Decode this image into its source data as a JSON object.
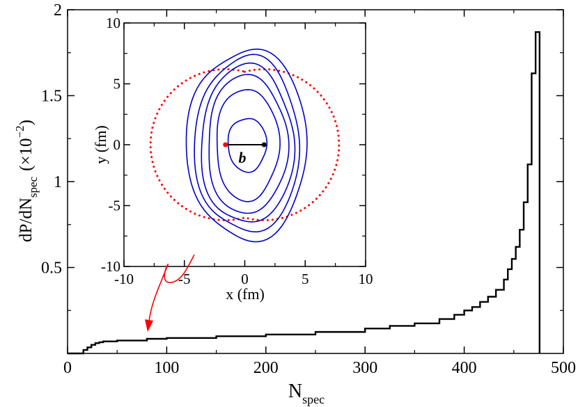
{
  "chart_data": [
    {
      "type": "line",
      "title": "",
      "xlabel_main": "N",
      "xlabel_sub": "spec",
      "ylabel_main": "dP/dN",
      "ylabel_sub": "spec",
      "ylabel_factor": "(×10",
      "ylabel_exp": "−2",
      "ylabel_close": ")",
      "xlim": [
        0,
        500
      ],
      "ylim": [
        0,
        2
      ],
      "x_ticks": [
        0,
        100,
        200,
        300,
        400,
        500
      ],
      "x_tick_labels": [
        "0",
        "100",
        "200",
        "300",
        "400",
        "500"
      ],
      "y_ticks": [
        0.5,
        1,
        1.5,
        2
      ],
      "y_tick_labels": [
        "0.5",
        "1",
        "1.5",
        "2"
      ],
      "series": [
        {
          "name": "histogram",
          "style": "step",
          "color": "#000000",
          "x": [
            0,
            16,
            20,
            24,
            28,
            32,
            36,
            50,
            80,
            100,
            150,
            200,
            250,
            300,
            325,
            350,
            375,
            390,
            400,
            408,
            416,
            424,
            432,
            440,
            444,
            448,
            452,
            456,
            460,
            464,
            468,
            472,
            476
          ],
          "values": [
            0,
            0.02,
            0.035,
            0.05,
            0.06,
            0.065,
            0.07,
            0.075,
            0.085,
            0.09,
            0.1,
            0.11,
            0.125,
            0.145,
            0.16,
            0.175,
            0.2,
            0.225,
            0.25,
            0.27,
            0.3,
            0.33,
            0.37,
            0.43,
            0.49,
            0.55,
            0.62,
            0.72,
            0.88,
            1.1,
            1.63,
            1.87,
            0
          ]
        }
      ]
    },
    {
      "type": "line",
      "title": "",
      "xlabel": "x (fm)",
      "ylabel": "y (fm)",
      "xlim": [
        -10,
        10
      ],
      "ylim": [
        -10,
        10
      ],
      "x_ticks": [
        -10,
        -5,
        0,
        5,
        10
      ],
      "x_tick_labels": [
        "-10",
        "-5",
        "0",
        "5",
        "10"
      ],
      "y_ticks": [
        -10,
        -5,
        0,
        5,
        10
      ],
      "y_tick_labels": [
        "-10",
        "-5",
        "0",
        "5",
        "10"
      ],
      "annotation": "b",
      "impact_parameter": {
        "x_start": -1.6,
        "x_end": 1.6,
        "y": 0
      },
      "dot_colors": [
        "#ff0000",
        "#000000"
      ],
      "nucleus_outline": {
        "style": "dotted",
        "color": "#ff0000",
        "radius": 6.2,
        "centers_x": [
          -1.6,
          1.6
        ]
      },
      "contours": {
        "color": "#0000cc",
        "semi_axes": [
          {
            "a": 1.6,
            "b": 2.2
          },
          {
            "a": 2.6,
            "b": 4.6
          },
          {
            "a": 3.3,
            "b": 5.7
          },
          {
            "a": 3.85,
            "b": 6.5
          },
          {
            "a": 4.35,
            "b": 7.2
          },
          {
            "a": 5.0,
            "b": 7.8
          }
        ]
      }
    }
  ],
  "colors": {
    "axis": "#000000",
    "contour": "#0000cc",
    "dotted": "#ff0000",
    "arrow": "#ff0000"
  }
}
